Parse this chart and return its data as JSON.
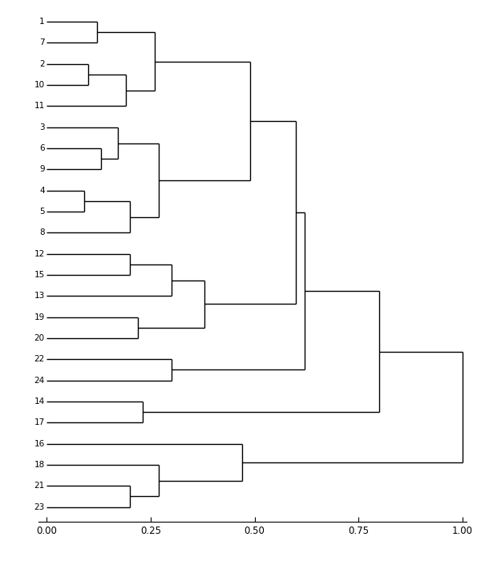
{
  "leaf_labels": [
    "1",
    "7",
    "2",
    "10",
    "11",
    "3",
    "6",
    "9",
    "4",
    "5",
    "8",
    "12",
    "15",
    "13",
    "19",
    "20",
    "22",
    "24",
    "14",
    "17",
    "16",
    "18",
    "21",
    "23"
  ],
  "figsize": [
    6.0,
    7.0
  ],
  "dpi": 100,
  "xticks": [
    0.0,
    0.25,
    0.5,
    0.75,
    1.0
  ],
  "xtick_labels": [
    "0.00",
    "0.25",
    "0.50",
    "0.75",
    "1.00"
  ],
  "background_color": "#ffffff",
  "line_color": "black",
  "leaf_font_size": 7.5,
  "axis_font_size": 8.5,
  "line_width": 1.0,
  "tree": {
    "type": "node",
    "dist": 1.0,
    "left": {
      "type": "node",
      "dist": 0.8,
      "left": {
        "type": "node",
        "dist": 0.62,
        "left": {
          "type": "node",
          "dist": 0.6,
          "left": {
            "type": "node",
            "dist": 0.49,
            "left": {
              "type": "node",
              "dist": 0.26,
              "left": {
                "type": "node",
                "dist": 0.12,
                "left": {
                  "type": "leaf",
                  "label": "1"
                },
                "right": {
                  "type": "leaf",
                  "label": "7"
                }
              },
              "right": {
                "type": "node",
                "dist": 0.19,
                "left": {
                  "type": "node",
                  "dist": 0.1,
                  "left": {
                    "type": "leaf",
                    "label": "2"
                  },
                  "right": {
                    "type": "leaf",
                    "label": "10"
                  }
                },
                "right": {
                  "type": "leaf",
                  "label": "11"
                }
              }
            },
            "right": {
              "type": "node",
              "dist": 0.27,
              "left": {
                "type": "node",
                "dist": 0.17,
                "left": {
                  "type": "leaf",
                  "label": "3"
                },
                "right": {
                  "type": "node",
                  "dist": 0.13,
                  "left": {
                    "type": "leaf",
                    "label": "6"
                  },
                  "right": {
                    "type": "leaf",
                    "label": "9"
                  }
                }
              },
              "right": {
                "type": "node",
                "dist": 0.2,
                "left": {
                  "type": "node",
                  "dist": 0.09,
                  "left": {
                    "type": "leaf",
                    "label": "4"
                  },
                  "right": {
                    "type": "leaf",
                    "label": "5"
                  }
                },
                "right": {
                  "type": "leaf",
                  "label": "8"
                }
              }
            }
          },
          "right": {
            "type": "node",
            "dist": 0.38,
            "left": {
              "type": "node",
              "dist": 0.3,
              "left": {
                "type": "node",
                "dist": 0.2,
                "left": {
                  "type": "leaf",
                  "label": "12"
                },
                "right": {
                  "type": "leaf",
                  "label": "15"
                }
              },
              "right": {
                "type": "leaf",
                "label": "13"
              }
            },
            "right": {
              "type": "node",
              "dist": 0.22,
              "left": {
                "type": "leaf",
                "label": "19"
              },
              "right": {
                "type": "leaf",
                "label": "20"
              }
            }
          }
        },
        "right": {
          "type": "node",
          "dist": 0.3,
          "left": {
            "type": "leaf",
            "label": "22"
          },
          "right": {
            "type": "leaf",
            "label": "24"
          }
        }
      },
      "right": {
        "type": "node",
        "dist": 0.23,
        "left": {
          "type": "leaf",
          "label": "14"
        },
        "right": {
          "type": "leaf",
          "label": "17"
        }
      }
    },
    "right": {
      "type": "node",
      "dist": 0.47,
      "left": {
        "type": "leaf",
        "label": "16"
      },
      "right": {
        "type": "node",
        "dist": 0.27,
        "left": {
          "type": "leaf",
          "label": "18"
        },
        "right": {
          "type": "node",
          "dist": 0.2,
          "left": {
            "type": "leaf",
            "label": "21"
          },
          "right": {
            "type": "leaf",
            "label": "23"
          }
        }
      }
    }
  }
}
